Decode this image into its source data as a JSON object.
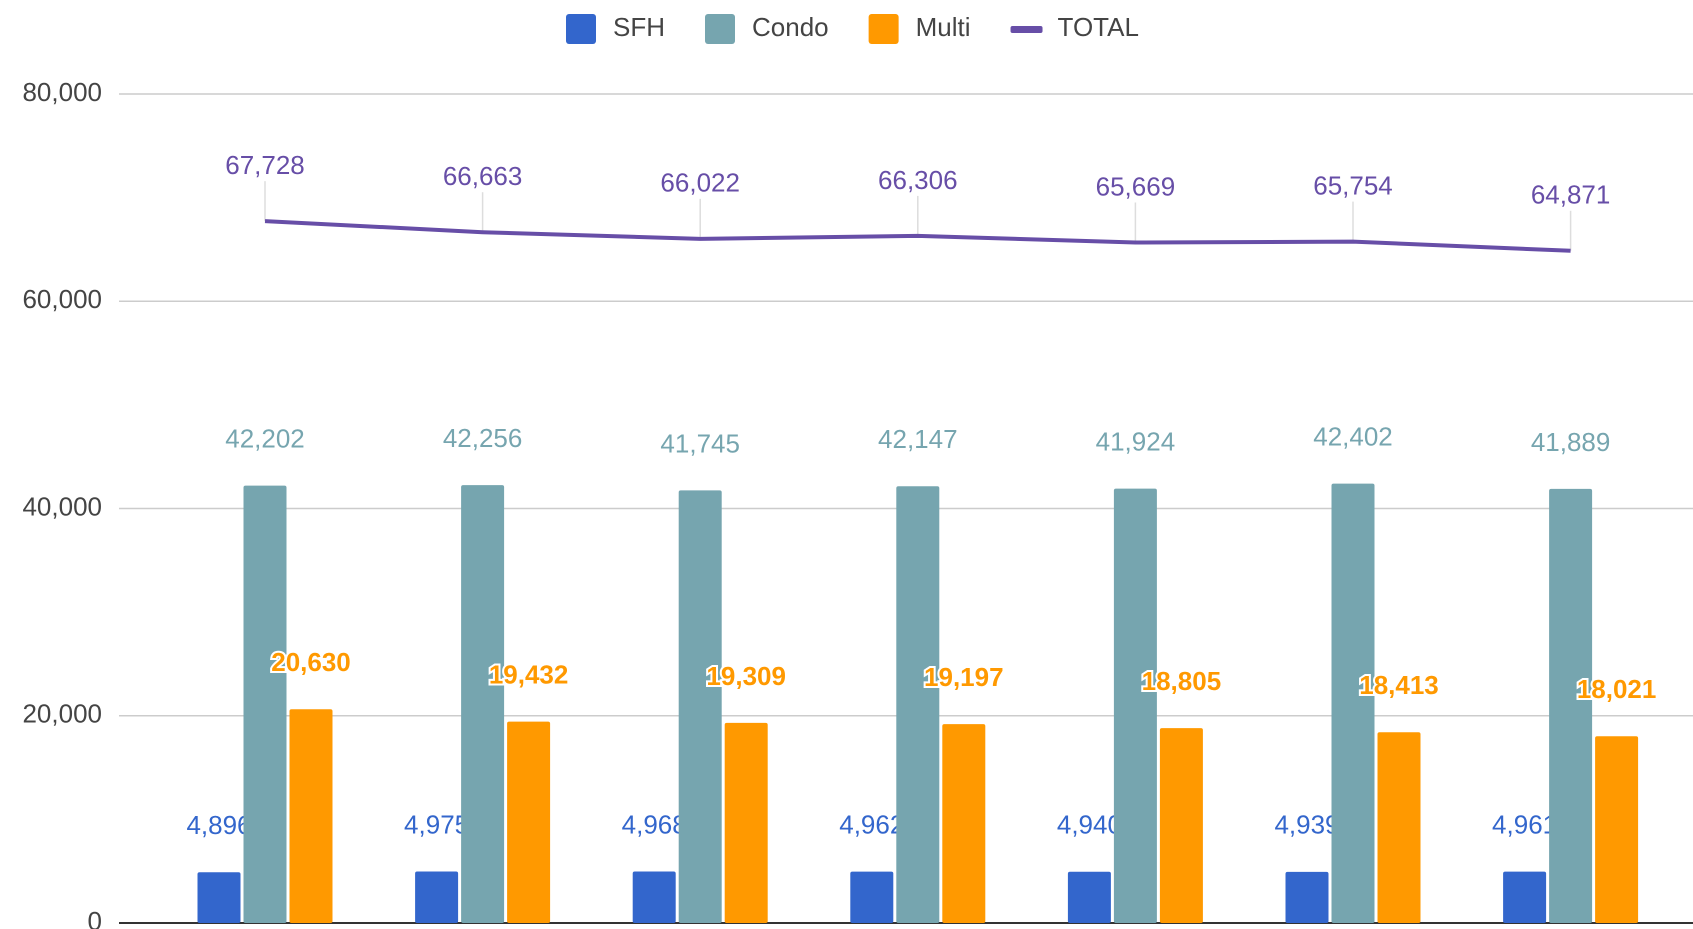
{
  "chart_data": {
    "type": "bar",
    "categories": [
      null,
      null,
      null,
      null,
      null,
      null,
      null
    ],
    "ylim": [
      0,
      80000
    ],
    "yticks": [
      0,
      {
        "value": 20000,
        "label": "20,000"
      },
      {
        "value": 40000,
        "label": "40,000"
      },
      {
        "value": 60000,
        "label": "60,000"
      },
      {
        "value": 80000,
        "label": "80,000"
      }
    ],
    "grid": true,
    "legend": "top",
    "series": [
      {
        "name": "SFH",
        "color": "#3366cc",
        "values": [
          4896,
          4975,
          4968,
          4962,
          4940,
          4939,
          4961
        ],
        "value_labels": [
          "4,896",
          "4,975",
          "4,968",
          "4,962",
          "4,940",
          "4,939",
          "4,961"
        ]
      },
      {
        "name": "Condo",
        "color": "#76a5af",
        "values": [
          42202,
          42256,
          41745,
          42147,
          41924,
          42402,
          41889
        ],
        "value_labels": [
          "42,202",
          "42,256",
          "41,745",
          "42,147",
          "41,924",
          "42,402",
          "41,889"
        ]
      },
      {
        "name": "Multi",
        "color": "#ff9900",
        "values": [
          20630,
          19432,
          19309,
          19197,
          18805,
          18413,
          18021
        ],
        "value_labels": [
          "20,630",
          "19,432",
          "19,309",
          "19,197",
          "18,805",
          "18,413",
          "18,021"
        ]
      },
      {
        "name": "TOTAL",
        "type": "line",
        "color": "#674ea7",
        "values": [
          67728,
          66663,
          66022,
          66306,
          65669,
          65754,
          64871
        ],
        "value_labels": [
          "67,728",
          "66,663",
          "66,022",
          "66,306",
          "65,669",
          "65,754",
          "64,871"
        ]
      }
    ]
  }
}
